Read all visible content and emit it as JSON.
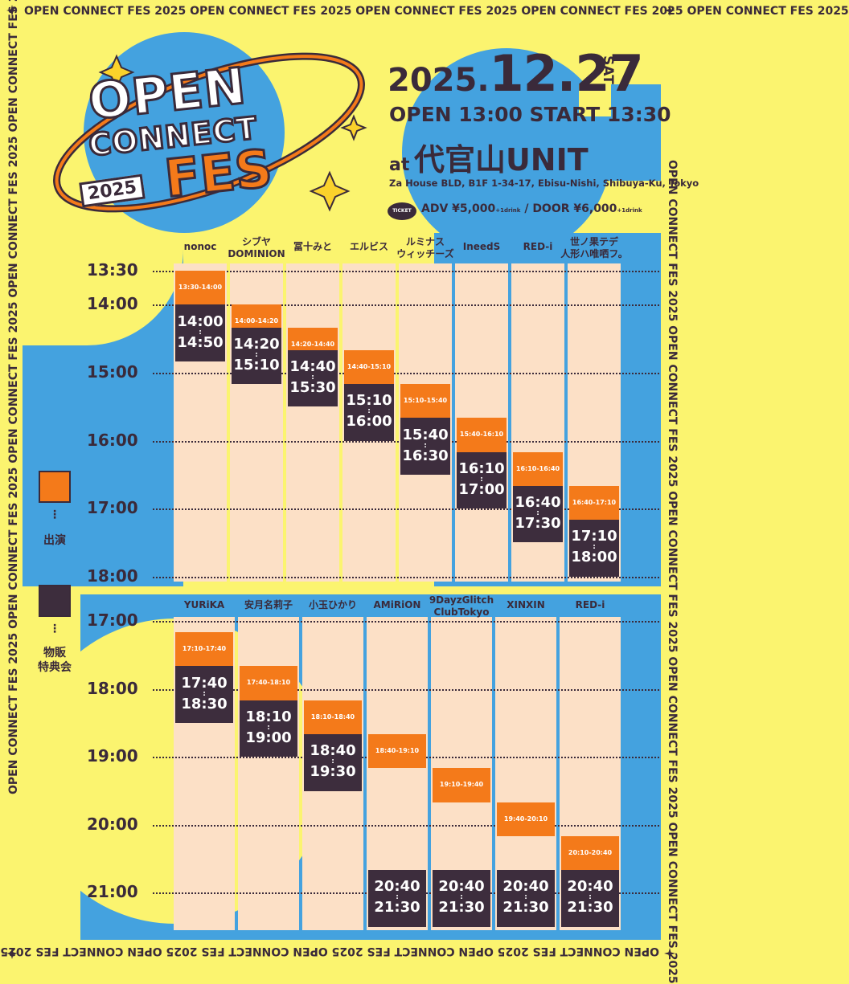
{
  "frame_text": "OPEN CONNECT FES 2025   OPEN CONNECT FES 2025   OPEN CONNECT FES 2025   OPEN CONNECT FES 2025   OPEN CONNECT FES 2025",
  "logo": {
    "open": "OPEN",
    "connect": "CONNECT",
    "fes": "FES",
    "year": "2025"
  },
  "event": {
    "date_year": "2025.",
    "date_md": "12.27",
    "day_of_week": "SAT",
    "times": "OPEN 13:00 START 13:30",
    "venue_at": "at",
    "venue_name": "代官山UNIT",
    "address": "Za House BLD, B1F 1-34-17, Ebisu-Nishi, Shibuya-Ku, Tokyo",
    "ticket_badge": "TICKET",
    "adv_label": "ADV ¥5,000",
    "adv_note": "+1drink",
    "door_label": " / DOOR ¥6,000",
    "door_note": "+1drink"
  },
  "legend": {
    "perform": "出演",
    "merch": "物販\n特典会",
    "dots": "⋮"
  },
  "schedule_top": {
    "times": [
      "13:30",
      "14:00",
      "15:00",
      "16:00",
      "17:00",
      "18:00"
    ],
    "artists": [
      {
        "name": "nonoc",
        "perform": "13:30-14:00",
        "merch_start": "14:00",
        "merch_end": "14:50"
      },
      {
        "name": "シブヤ\nDOMINION",
        "perform": "14:00-14:20",
        "merch_start": "14:20",
        "merch_end": "15:10"
      },
      {
        "name": "冨十みと",
        "perform": "14:20-14:40",
        "merch_start": "14:40",
        "merch_end": "15:30"
      },
      {
        "name": "エルビス",
        "perform": "14:40-15:10",
        "merch_start": "15:10",
        "merch_end": "16:00"
      },
      {
        "name": "ルミナス\nウィッチーズ",
        "perform": "15:10-15:40",
        "merch_start": "15:40",
        "merch_end": "16:30"
      },
      {
        "name": "IneedS",
        "perform": "15:40-16:10",
        "merch_start": "16:10",
        "merch_end": "17:00"
      },
      {
        "name": "RED-i",
        "perform": "16:10-16:40",
        "merch_start": "16:40",
        "merch_end": "17:30"
      },
      {
        "name": "世ノ果テデ\n人形ハ唯哂フ。",
        "perform": "16:40-17:10",
        "merch_start": "17:10",
        "merch_end": "18:00"
      }
    ]
  },
  "schedule_bottom": {
    "times": [
      "17:00",
      "18:00",
      "19:00",
      "20:00",
      "21:00"
    ],
    "artists": [
      {
        "name": "YURiKA",
        "perform": "17:10-17:40",
        "merch_start": "17:40",
        "merch_end": "18:30"
      },
      {
        "name": "安月名莉子",
        "perform": "17:40-18:10",
        "merch_start": "18:10",
        "merch_end": "19:00"
      },
      {
        "name": "小玉ひかり",
        "perform": "18:10-18:40",
        "merch_start": "18:40",
        "merch_end": "19:30"
      },
      {
        "name": "AMiRiON",
        "perform": "18:40-19:10",
        "merch_start": "20:40",
        "merch_end": "21:30"
      },
      {
        "name": "9DayzGlitch\nClubTokyo",
        "perform": "19:10-19:40",
        "merch_start": "20:40",
        "merch_end": "21:30"
      },
      {
        "name": "XINXIN",
        "perform": "19:40-20:10",
        "merch_start": "20:40",
        "merch_end": "21:30"
      },
      {
        "name": "RED-i",
        "perform": "20:10-20:40",
        "merch_start": "20:40",
        "merch_end": "21:30"
      }
    ]
  },
  "colors": {
    "background": "#fbf46f",
    "blue": "#44a2df",
    "orange": "#f47a1a",
    "dark": "#3d2d3d",
    "cream": "#fce0c6"
  }
}
